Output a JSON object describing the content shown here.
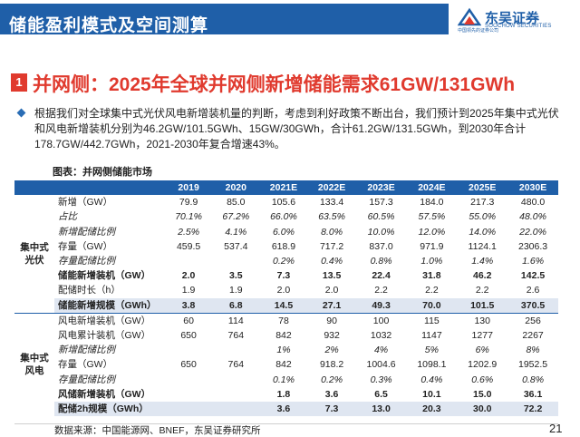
{
  "header": {
    "title": "储能盈利模式及空间测算",
    "logo_text": "东吴证券",
    "logo_sub": "SOOCHOW SECURITIES",
    "logo_small": "中国领先的证券公司"
  },
  "section": {
    "number": "1",
    "title": "并网侧：2025年全球并网侧新增储能需求61GW/131GWh"
  },
  "paragraph": "根据我们对全球集中式光伏风电新增装机量的判断，考虑到利好政策不断出台，我们预计到2025年集中式光伏和风电新增装机分别为46.2GW/101.5GWh、15GW/30GWh，合计61.2GW/131.5GWh，到2030年合计178.7GW/442.7GWh，2021-2030年复合增速43%。",
  "figure_title": "图表：并网侧储能市场",
  "colors": {
    "header_blue": "#1f5fa8",
    "accent_red": "#e03a2e",
    "shade": "#dfe6f1"
  },
  "table": {
    "columns": [
      "",
      "",
      "2019",
      "2020",
      "2021E",
      "2022E",
      "2023E",
      "2024E",
      "2025E",
      "2030E"
    ],
    "groups": [
      {
        "name": "集中式\n光伏",
        "rows": [
          {
            "label": "新增（GW）",
            "style": "normal",
            "values": [
              "79.9",
              "85.0",
              "105.6",
              "133.4",
              "157.3",
              "184.0",
              "217.3",
              "480.0"
            ]
          },
          {
            "label": "占比",
            "style": "italic",
            "values": [
              "70.1%",
              "67.2%",
              "66.0%",
              "63.5%",
              "60.5%",
              "57.5%",
              "55.0%",
              "48.0%"
            ]
          },
          {
            "label": "新增配储比例",
            "style": "italic",
            "values": [
              "2.5%",
              "4.1%",
              "6.0%",
              "8.0%",
              "10.0%",
              "12.0%",
              "14.0%",
              "22.0%"
            ]
          },
          {
            "label": "存量（GW）",
            "style": "normal",
            "values": [
              "459.5",
              "537.4",
              "618.9",
              "717.2",
              "837.0",
              "971.9",
              "1124.1",
              "2306.3"
            ]
          },
          {
            "label": "存量配储比例",
            "style": "italic",
            "values": [
              "",
              "",
              "0.2%",
              "0.4%",
              "0.8%",
              "1.0%",
              "1.4%",
              "1.6%"
            ]
          },
          {
            "label": "储能新增装机（GW）",
            "style": "bold",
            "values": [
              "2.0",
              "3.5",
              "7.3",
              "13.5",
              "22.4",
              "31.8",
              "46.2",
              "142.5"
            ]
          },
          {
            "label": "配储时长（h）",
            "style": "normal",
            "values": [
              "1.9",
              "1.9",
              "2.0",
              "2.0",
              "2.2",
              "2.2",
              "2.2",
              "2.6"
            ]
          },
          {
            "label": "储能新增规模（GWh）",
            "style": "bold-shade",
            "values": [
              "3.8",
              "6.8",
              "14.5",
              "27.1",
              "49.3",
              "70.0",
              "101.5",
              "370.5"
            ]
          }
        ]
      },
      {
        "name": "集中式\n风电",
        "rows": [
          {
            "label": "风电新增装机（GW）",
            "style": "normal",
            "values": [
              "60",
              "114",
              "78",
              "90",
              "100",
              "115",
              "130",
              "256"
            ]
          },
          {
            "label": "风电累计装机（GW）",
            "style": "normal",
            "values": [
              "650",
              "764",
              "842",
              "932",
              "1032",
              "1147",
              "1277",
              "2267"
            ]
          },
          {
            "label": "新增配储比例",
            "style": "italic",
            "values": [
              "",
              "",
              "1%",
              "2%",
              "4%",
              "5%",
              "6%",
              "8%"
            ]
          },
          {
            "label": "存量（GW）",
            "style": "normal",
            "values": [
              "650",
              "764",
              "842",
              "918.2",
              "1004.6",
              "1098.1",
              "1202.9",
              "1952.5"
            ]
          },
          {
            "label": "存量配储比例",
            "style": "italic",
            "values": [
              "",
              "",
              "0.1%",
              "0.2%",
              "0.3%",
              "0.4%",
              "0.6%",
              "0.8%"
            ]
          },
          {
            "label": "风储新增装机（GW）",
            "style": "bold",
            "values": [
              "",
              "",
              "1.8",
              "3.6",
              "6.5",
              "10.1",
              "15.0",
              "36.1"
            ]
          },
          {
            "label": "配储2h规模（GWh）",
            "style": "bold-shade",
            "values": [
              "",
              "",
              "3.6",
              "7.3",
              "13.0",
              "20.3",
              "30.0",
              "72.2"
            ]
          }
        ]
      }
    ]
  },
  "footer": {
    "source": "数据来源：中国能源网、BNEF，东吴证券研究所",
    "page": "21"
  }
}
